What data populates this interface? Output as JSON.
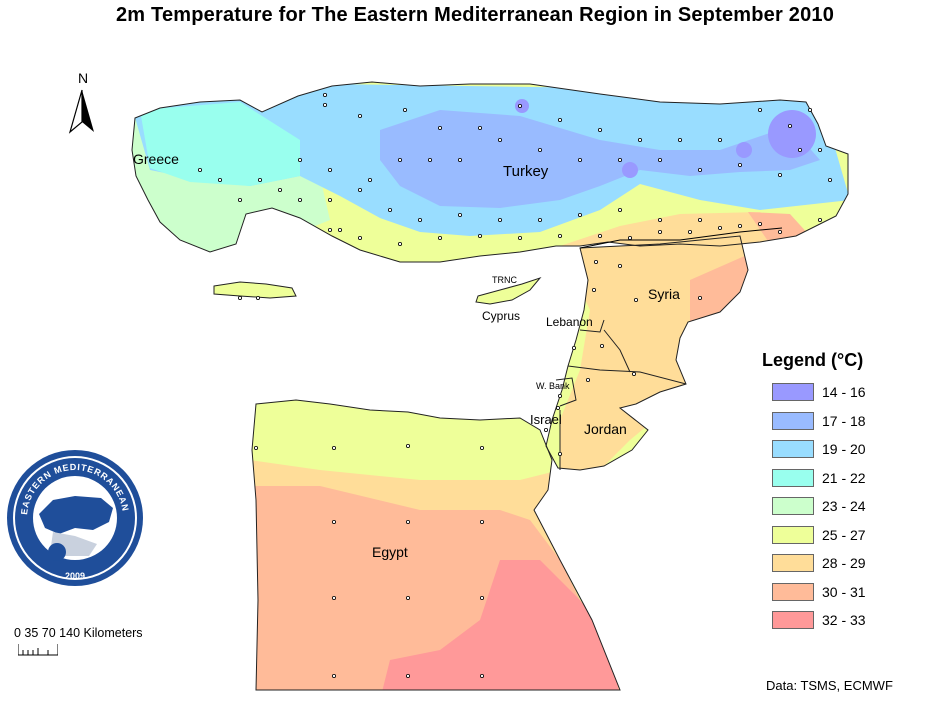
{
  "title": "2m Temperature  for The Eastern Mediterranean Region in September 2010",
  "north_arrow": {
    "label": "N",
    "icon": "north-arrow-icon"
  },
  "country_labels": {
    "greece": "Greece",
    "turkey": "Turkey",
    "trnc": "TRNC",
    "cyprus": "Cyprus",
    "lebanon": "Lebanon",
    "syria": "Syria",
    "w_bank": "W. Bank",
    "israel": "Israel",
    "jordan": "Jordan",
    "egypt": "Egypt"
  },
  "legend": {
    "title": "Legend (°C)",
    "items": [
      {
        "label": "14 - 16",
        "color": "#9999ff"
      },
      {
        "label": "17 - 18",
        "color": "#99bbff"
      },
      {
        "label": "19 - 20",
        "color": "#99ddff"
      },
      {
        "label": "21 - 22",
        "color": "#99ffee"
      },
      {
        "label": "23 - 24",
        "color": "#ccffcc"
      },
      {
        "label": "25 - 27",
        "color": "#eeff99"
      },
      {
        "label": "28 - 29",
        "color": "#ffdd99"
      },
      {
        "label": "30 - 31",
        "color": "#ffbb99"
      },
      {
        "label": "32 - 33",
        "color": "#ff9999"
      }
    ]
  },
  "scale_bar": {
    "label": "0 35 70 140  Kilometers"
  },
  "source": "Data:  TSMS, ECMWF",
  "logo": {
    "top_text": "EASTERN MEDITERRANEAN CLIMATE CENTRE",
    "year": "2009",
    "colors": {
      "ring": "#1f4e9a",
      "inner": "#ffffff"
    }
  }
}
